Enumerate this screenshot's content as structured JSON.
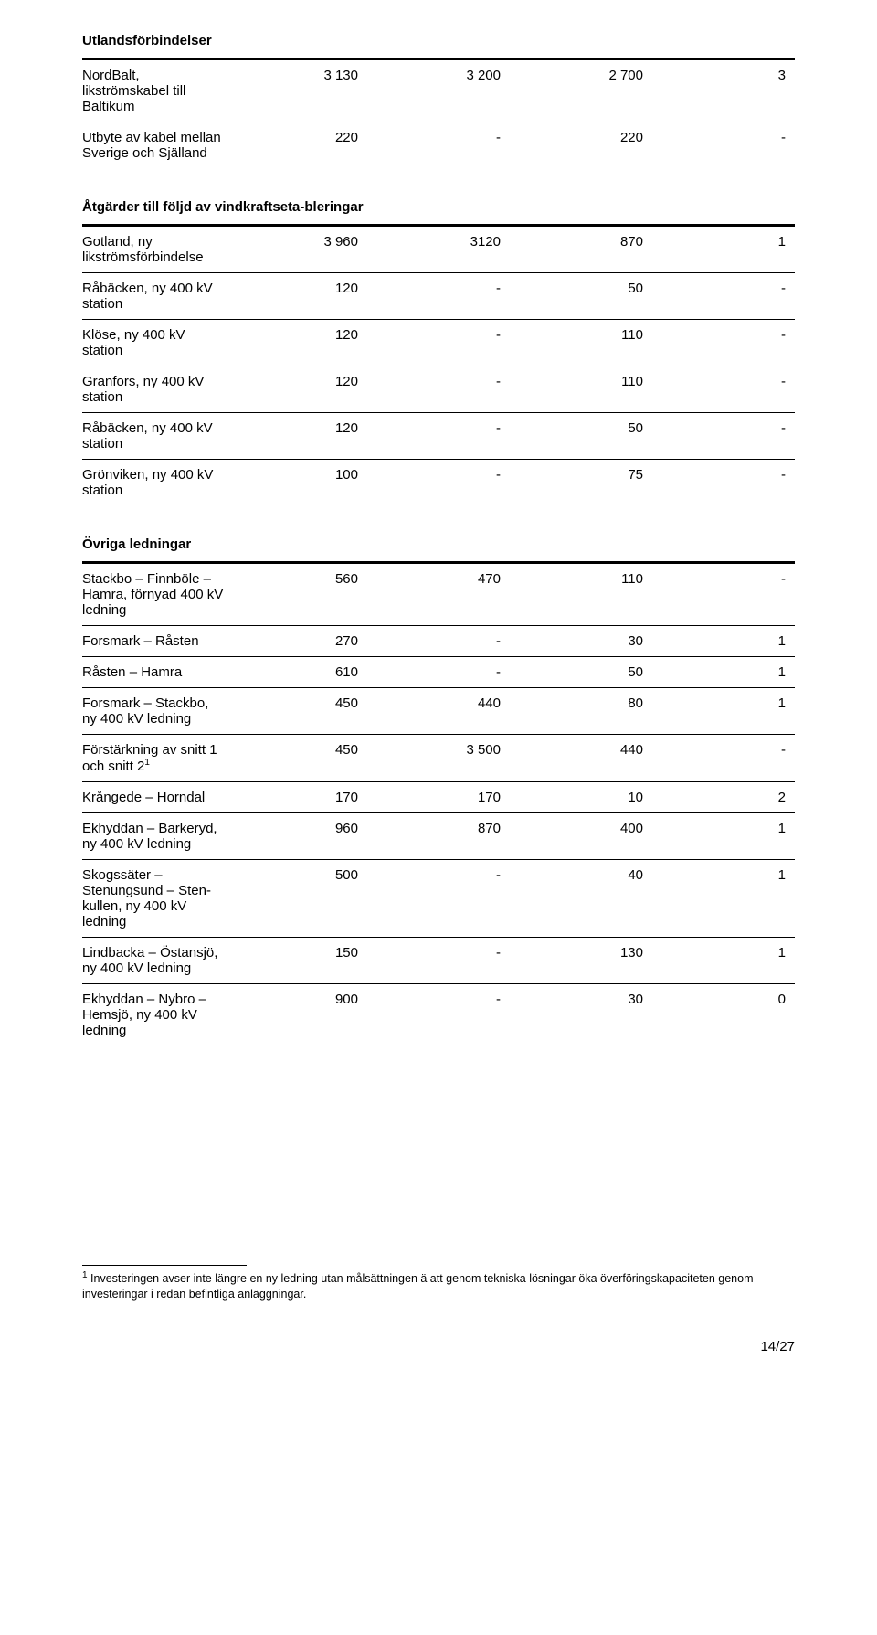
{
  "sections": {
    "utland": {
      "title": "Utlandsförbindelser",
      "rows": [
        {
          "label": "NordBalt, likströmskabel till Baltikum",
          "c": [
            "3 130",
            "3 200",
            "2 700",
            "3"
          ]
        },
        {
          "label": "Utbyte av kabel mellan Sverige och Själland",
          "c": [
            "220",
            "-",
            "220",
            "-"
          ]
        }
      ]
    },
    "vind": {
      "title": "Åtgärder till följd av vindkraftseta-bleringar",
      "rows": [
        {
          "label": "Gotland, ny likströmsförbindelse",
          "c": [
            "3 960",
            "3120",
            "870",
            "1"
          ]
        },
        {
          "label": "Råbäcken, ny 400 kV station",
          "c": [
            "120",
            "-",
            "50",
            "-"
          ]
        },
        {
          "label": "Klöse, ny 400 kV station",
          "c": [
            "120",
            "-",
            "110",
            "-"
          ]
        },
        {
          "label": "Granfors, ny 400 kV station",
          "c": [
            "120",
            "-",
            "110",
            "-"
          ]
        },
        {
          "label": "Råbäcken, ny 400 kV station",
          "c": [
            "120",
            "-",
            "50",
            "-"
          ]
        },
        {
          "label": "Grönviken, ny 400 kV station",
          "c": [
            "100",
            "-",
            "75",
            "-"
          ]
        }
      ]
    },
    "ovriga": {
      "title": "Övriga ledningar",
      "rows": [
        {
          "label": "Stackbo – Finnböle – Hamra, förnyad 400 kV ledning",
          "c": [
            "560",
            "470",
            "110",
            "-"
          ]
        },
        {
          "label": "Forsmark – Råsten",
          "c": [
            "270",
            "-",
            "30",
            "1"
          ]
        },
        {
          "label": "Råsten – Hamra",
          "c": [
            "610",
            "-",
            "50",
            "1"
          ]
        },
        {
          "label": "Forsmark – Stackbo, ny 400 kV ledning",
          "c": [
            "450",
            "440",
            "80",
            "1"
          ]
        },
        {
          "label": "Förstärkning av snitt 1 och snitt 2",
          "sup": "1",
          "c": [
            "450",
            "3 500",
            "440",
            "-"
          ]
        },
        {
          "label": "Krångede – Horndal",
          "c": [
            "170",
            "170",
            "10",
            "2"
          ]
        },
        {
          "label": "Ekhyddan – Barkeryd, ny 400 kV ledning",
          "c": [
            "960",
            "870",
            "400",
            "1"
          ]
        },
        {
          "label": "Skogssäter – Stenungsund – Sten-kullen, ny 400 kV ledning",
          "c": [
            "500",
            "-",
            "40",
            "1"
          ]
        },
        {
          "label": "Lindbacka – Östansjö, ny 400 kV ledning",
          "c": [
            "150",
            "-",
            "130",
            "1"
          ]
        },
        {
          "label": "Ekhyddan – Nybro – Hemsjö, ny 400 kV ledning",
          "c": [
            "900",
            "-",
            "30",
            "0"
          ]
        }
      ]
    }
  },
  "footnote_marker": "1",
  "footnote_text": " Investeringen avser inte längre en ny ledning utan målsättningen ä att genom tekniska lösningar öka överföringskapaciteten genom investeringar i redan befintliga anläggningar.",
  "page_number": "14/27"
}
